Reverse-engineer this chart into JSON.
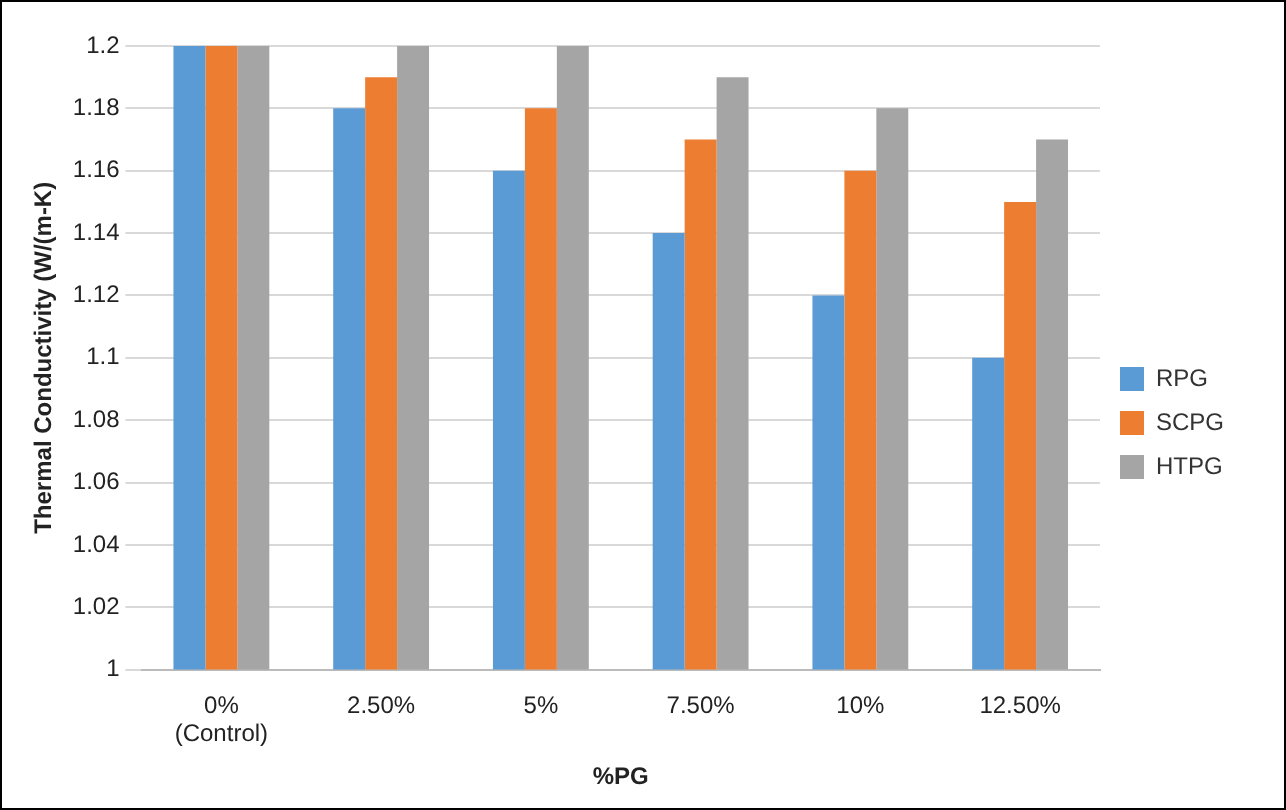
{
  "chart_data": {
    "type": "bar",
    "xlabel": "%PG",
    "ylabel": "Thermal Conductivity (W/(m-K)",
    "categories": [
      "0% (Control)",
      "2.50%",
      "5%",
      "7.50%",
      "10%",
      "12.50%"
    ],
    "series": [
      {
        "name": "RPG",
        "color": "#5b9bd5",
        "values": [
          1.2,
          1.18,
          1.16,
          1.14,
          1.12,
          1.1
        ]
      },
      {
        "name": "SCPG",
        "color": "#ed7d31",
        "values": [
          1.2,
          1.19,
          1.18,
          1.17,
          1.16,
          1.15
        ]
      },
      {
        "name": "HTPG",
        "color": "#a5a5a5",
        "values": [
          1.2,
          1.2,
          1.2,
          1.19,
          1.18,
          1.17
        ]
      }
    ],
    "ylim": [
      1,
      1.2
    ],
    "yticks": [
      1,
      1.02,
      1.04,
      1.06,
      1.08,
      1.1,
      1.12,
      1.14,
      1.16,
      1.18,
      1.2
    ],
    "grid": "y",
    "legend": "right"
  }
}
